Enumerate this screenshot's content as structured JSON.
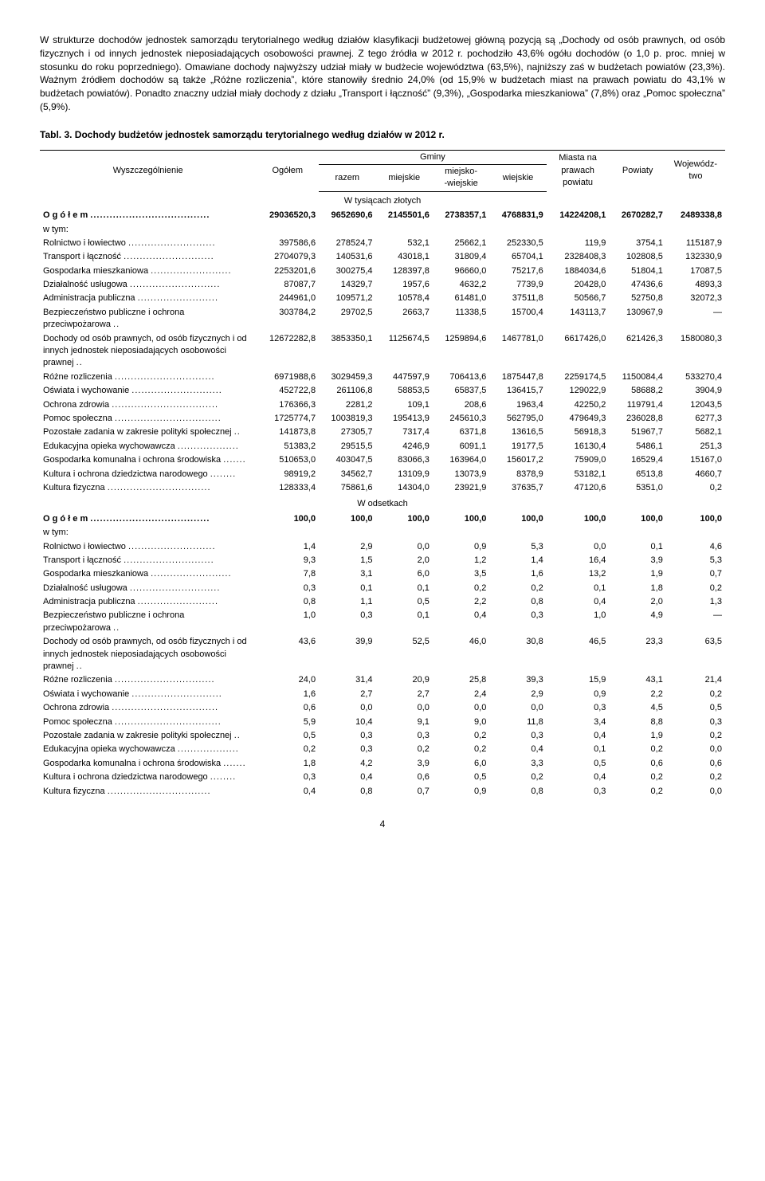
{
  "paragraph": "W strukturze dochodów jednostek samorządu terytorialnego według działów klasyfikacji budżetowej główną pozycją są „Dochody od osób prawnych, od osób fizycznych i od innych jednostek nieposiadających osobowości prawnej. Z tego źródła w 2012 r. pochodziło 43,6% ogółu dochodów (o 1,0 p. proc. mniej w stosunku do roku poprzedniego). Omawiane dochody najwyższy udział miały w budżecie województwa (63,5%), najniższy zaś w budżetach powiatów (23,3%). Ważnym źródłem dochodów są także „Różne rozliczenia”, które stanowiły średnio 24,0% (od 15,9% w budżetach miast na prawach powiatu do 43,1% w budżetach powiatów). Ponadto znaczny udział miały dochody z działu „Transport i łączność” (9,3%), „Gospodarka mieszkaniowa” (7,8%) oraz „Pomoc społeczna” (5,9%).",
  "table_title": "Tabl. 3. Dochody budżetów jednostek samorządu terytorialnego według działów w 2012 r.",
  "columns": {
    "c0": "Wyszczególnienie",
    "c1": "Ogółem",
    "gminy": "Gminy",
    "c2": "razem",
    "c3": "miejskie",
    "c4": "miejsko-\n-wiejskie",
    "c5": "wiejskie",
    "c6": "Miasta na\nprawach\npowiatu",
    "c7": "Powiaty",
    "c8": "Wojewódz-\ntwo"
  },
  "section1": "W tysiącach złotych",
  "section2": "W odsetkach",
  "rows_abs": [
    {
      "label": "O g ó ł e m",
      "bold": true,
      "indent": 0,
      "vals": [
        "29036520,3",
        "9652690,6",
        "2145501,6",
        "2738357,1",
        "4768831,9",
        "14224208,1",
        "2670282,7",
        "2489338,8"
      ]
    },
    {
      "label": "w tym:",
      "indent": 0,
      "vals": [
        "",
        "",
        "",
        "",
        "",
        "",
        "",
        ""
      ]
    },
    {
      "label": "Rolnictwo i łowiectwo",
      "indent": 0,
      "vals": [
        "397586,6",
        "278524,7",
        "532,1",
        "25662,1",
        "252330,5",
        "119,9",
        "3754,1",
        "115187,9"
      ]
    },
    {
      "label": "Transport i łączność",
      "indent": 0,
      "vals": [
        "2704079,3",
        "140531,6",
        "43018,1",
        "31809,4",
        "65704,1",
        "2328408,3",
        "102808,5",
        "132330,9"
      ]
    },
    {
      "label": "Gospodarka mieszkaniowa",
      "indent": 0,
      "vals": [
        "2253201,6",
        "300275,4",
        "128397,8",
        "96660,0",
        "75217,6",
        "1884034,6",
        "51804,1",
        "17087,5"
      ]
    },
    {
      "label": "Działalność usługowa",
      "indent": 0,
      "vals": [
        "87087,7",
        "14329,7",
        "1957,6",
        "4632,2",
        "7739,9",
        "20428,0",
        "47436,6",
        "4893,3"
      ]
    },
    {
      "label": "Administracja publiczna",
      "indent": 0,
      "vals": [
        "244961,0",
        "109571,2",
        "10578,4",
        "61481,0",
        "37511,8",
        "50566,7",
        "52750,8",
        "32072,3"
      ]
    },
    {
      "label": "Bezpieczeństwo publiczne i ochrona przeciwpożarowa",
      "indent": 0,
      "vals": [
        "303784,2",
        "29702,5",
        "2663,7",
        "11338,5",
        "15700,4",
        "143113,7",
        "130967,9",
        "—"
      ]
    },
    {
      "label": "Dochody od osób prawnych, od osób fizycznych i od innych jednostek nieposiadających osobowości prawnej",
      "indent": 0,
      "vals": [
        "12672282,8",
        "3853350,1",
        "1125674,5",
        "1259894,6",
        "1467781,0",
        "6617426,0",
        "621426,3",
        "1580080,3"
      ]
    },
    {
      "label": "Różne rozliczenia",
      "indent": 0,
      "vals": [
        "6971988,6",
        "3029459,3",
        "447597,9",
        "706413,6",
        "1875447,8",
        "2259174,5",
        "1150084,4",
        "533270,4"
      ]
    },
    {
      "label": "Oświata i wychowanie",
      "indent": 0,
      "vals": [
        "452722,8",
        "261106,8",
        "58853,5",
        "65837,5",
        "136415,7",
        "129022,9",
        "58688,2",
        "3904,9"
      ]
    },
    {
      "label": "Ochrona zdrowia",
      "indent": 0,
      "vals": [
        "176366,3",
        "2281,2",
        "109,1",
        "208,6",
        "1963,4",
        "42250,2",
        "119791,4",
        "12043,5"
      ]
    },
    {
      "label": "Pomoc społeczna",
      "indent": 0,
      "vals": [
        "1725774,7",
        "1003819,3",
        "195413,9",
        "245610,3",
        "562795,0",
        "479649,3",
        "236028,8",
        "6277,3"
      ]
    },
    {
      "label": "Pozostałe zadania w zakresie polityki społecznej",
      "indent": 0,
      "vals": [
        "141873,8",
        "27305,7",
        "7317,4",
        "6371,8",
        "13616,5",
        "56918,3",
        "51967,7",
        "5682,1"
      ]
    },
    {
      "label": "Edukacyjna opieka wychowawcza",
      "indent": 0,
      "vals": [
        "51383,2",
        "29515,5",
        "4246,9",
        "6091,1",
        "19177,5",
        "16130,4",
        "5486,1",
        "251,3"
      ]
    },
    {
      "label": "Gospodarka komunalna i ochrona środowiska",
      "indent": 0,
      "vals": [
        "510653,0",
        "403047,5",
        "83066,3",
        "163964,0",
        "156017,2",
        "75909,0",
        "16529,4",
        "15167,0"
      ]
    },
    {
      "label": "Kultura i ochrona dziedzictwa narodowego",
      "indent": 0,
      "vals": [
        "98919,2",
        "34562,7",
        "13109,9",
        "13073,9",
        "8378,9",
        "53182,1",
        "6513,8",
        "4660,7"
      ]
    },
    {
      "label": "Kultura fizyczna",
      "indent": 0,
      "vals": [
        "128333,4",
        "75861,6",
        "14304,0",
        "23921,9",
        "37635,7",
        "47120,6",
        "5351,0",
        "0,2"
      ]
    }
  ],
  "rows_pct": [
    {
      "label": "O g ó ł e m",
      "bold": true,
      "indent": 0,
      "vals": [
        "100,0",
        "100,0",
        "100,0",
        "100,0",
        "100,0",
        "100,0",
        "100,0",
        "100,0"
      ]
    },
    {
      "label": "w tym:",
      "indent": 0,
      "vals": [
        "",
        "",
        "",
        "",
        "",
        "",
        "",
        ""
      ]
    },
    {
      "label": "Rolnictwo i łowiectwo",
      "indent": 0,
      "vals": [
        "1,4",
        "2,9",
        "0,0",
        "0,9",
        "5,3",
        "0,0",
        "0,1",
        "4,6"
      ]
    },
    {
      "label": "Transport i łączność",
      "indent": 0,
      "vals": [
        "9,3",
        "1,5",
        "2,0",
        "1,2",
        "1,4",
        "16,4",
        "3,9",
        "5,3"
      ]
    },
    {
      "label": "Gospodarka mieszkaniowa",
      "indent": 0,
      "vals": [
        "7,8",
        "3,1",
        "6,0",
        "3,5",
        "1,6",
        "13,2",
        "1,9",
        "0,7"
      ]
    },
    {
      "label": "Działalność usługowa",
      "indent": 0,
      "vals": [
        "0,3",
        "0,1",
        "0,1",
        "0,2",
        "0,2",
        "0,1",
        "1,8",
        "0,2"
      ]
    },
    {
      "label": "Administracja publiczna",
      "indent": 0,
      "vals": [
        "0,8",
        "1,1",
        "0,5",
        "2,2",
        "0,8",
        "0,4",
        "2,0",
        "1,3"
      ]
    },
    {
      "label": "Bezpieczeństwo publiczne i ochrona przeciwpożarowa",
      "indent": 0,
      "vals": [
        "1,0",
        "0,3",
        "0,1",
        "0,4",
        "0,3",
        "1,0",
        "4,9",
        "—"
      ]
    },
    {
      "label": "Dochody od osób prawnych, od osób fizycznych i od innych jednostek nieposiadających osobowości prawnej",
      "indent": 0,
      "vals": [
        "43,6",
        "39,9",
        "52,5",
        "46,0",
        "30,8",
        "46,5",
        "23,3",
        "63,5"
      ]
    },
    {
      "label": "Różne rozliczenia",
      "indent": 0,
      "vals": [
        "24,0",
        "31,4",
        "20,9",
        "25,8",
        "39,3",
        "15,9",
        "43,1",
        "21,4"
      ]
    },
    {
      "label": "Oświata i wychowanie",
      "indent": 0,
      "vals": [
        "1,6",
        "2,7",
        "2,7",
        "2,4",
        "2,9",
        "0,9",
        "2,2",
        "0,2"
      ]
    },
    {
      "label": "Ochrona zdrowia",
      "indent": 0,
      "vals": [
        "0,6",
        "0,0",
        "0,0",
        "0,0",
        "0,0",
        "0,3",
        "4,5",
        "0,5"
      ]
    },
    {
      "label": "Pomoc społeczna",
      "indent": 0,
      "vals": [
        "5,9",
        "10,4",
        "9,1",
        "9,0",
        "11,8",
        "3,4",
        "8,8",
        "0,3"
      ]
    },
    {
      "label": "Pozostałe zadania w zakresie polityki społecznej",
      "indent": 0,
      "vals": [
        "0,5",
        "0,3",
        "0,3",
        "0,2",
        "0,3",
        "0,4",
        "1,9",
        "0,2"
      ]
    },
    {
      "label": "Edukacyjna opieka wychowawcza",
      "indent": 0,
      "vals": [
        "0,2",
        "0,3",
        "0,2",
        "0,2",
        "0,4",
        "0,1",
        "0,2",
        "0,0"
      ]
    },
    {
      "label": "Gospodarka komunalna i ochrona środowiska",
      "indent": 0,
      "vals": [
        "1,8",
        "4,2",
        "3,9",
        "6,0",
        "3,3",
        "0,5",
        "0,6",
        "0,6"
      ]
    },
    {
      "label": "Kultura i ochrona dziedzictwa narodowego",
      "indent": 0,
      "vals": [
        "0,3",
        "0,4",
        "0,6",
        "0,5",
        "0,2",
        "0,4",
        "0,2",
        "0,2"
      ]
    },
    {
      "label": "Kultura fizyczna",
      "indent": 0,
      "vals": [
        "0,4",
        "0,8",
        "0,7",
        "0,9",
        "0,8",
        "0,3",
        "0,2",
        "0,0"
      ]
    }
  ],
  "page_number": "4"
}
